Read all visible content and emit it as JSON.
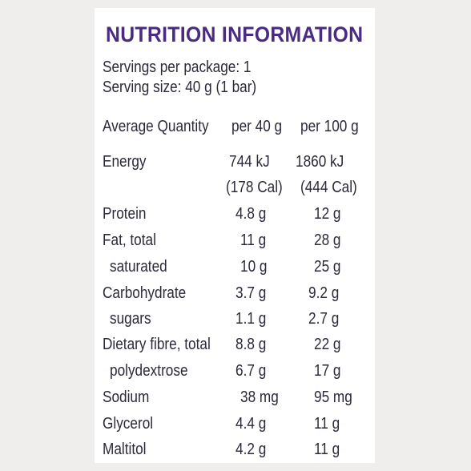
{
  "title": "NUTRITION INFORMATION",
  "servings_per_package": "Servings per package: 1",
  "serving_size": "Serving size: 40 g (1 bar)",
  "header": {
    "quantity": "Average Quantity",
    "per_serving": "per 40 g",
    "per_100g": "per 100 g"
  },
  "rows": [
    {
      "name": "Energy",
      "per_serving": "744 kJ",
      "per_100g": "1860 kJ",
      "sub": false
    },
    {
      "name": "",
      "per_serving": "(178 Cal)",
      "per_100g": "(444 Cal)",
      "sub": false
    },
    {
      "name": "Protein",
      "per_serving": "4.8 g",
      "per_100g": "12 g",
      "sub": false
    },
    {
      "name": "Fat, total",
      "per_serving": "11 g",
      "per_100g": "28 g",
      "sub": false
    },
    {
      "name": "saturated",
      "per_serving": "10 g",
      "per_100g": "25 g",
      "sub": true
    },
    {
      "name": "Carbohydrate",
      "per_serving": "3.7 g",
      "per_100g": "9.2 g",
      "sub": false
    },
    {
      "name": "sugars",
      "per_serving": "1.1 g",
      "per_100g": "2.7 g",
      "sub": true
    },
    {
      "name": "Dietary fibre, total",
      "per_serving": "8.8 g",
      "per_100g": "22 g",
      "sub": false
    },
    {
      "name": "polydextrose",
      "per_serving": "6.7 g",
      "per_100g": "17 g",
      "sub": true
    },
    {
      "name": "Sodium",
      "per_serving": "38 mg",
      "per_100g": "95 mg",
      "sub": false
    },
    {
      "name": "Glycerol",
      "per_serving": "4.4 g",
      "per_100g": "11 g",
      "sub": false
    },
    {
      "name": "Maltitol",
      "per_serving": "4.2 g",
      "per_100g": "11 g",
      "sub": false
    }
  ]
}
